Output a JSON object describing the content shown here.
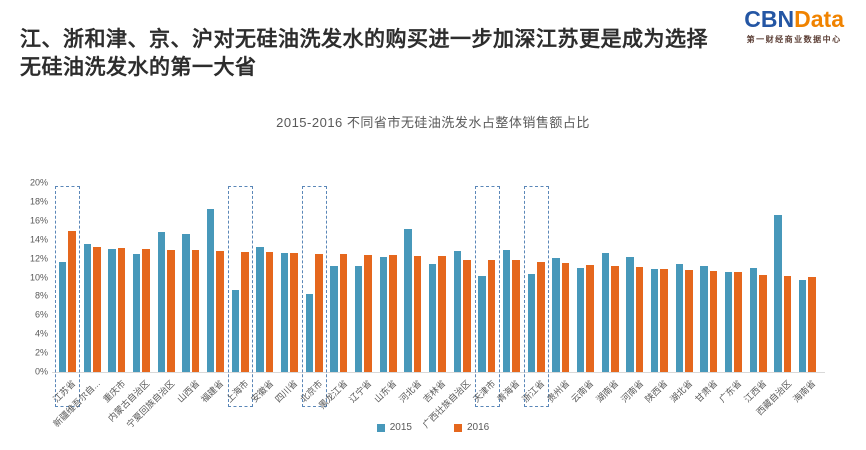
{
  "header": {
    "title_line1": "江、浙和津、京、沪对无硅油洗发水的购买进一步加深江苏更是成为选择",
    "title_line2": "无硅油洗发水的第一大省",
    "logo": {
      "part1": "CBN",
      "part2": "Data",
      "subtitle": "第一财经商业数据中心"
    }
  },
  "chart_data": {
    "type": "bar",
    "title": "2015-2016 不同省市无硅油洗发水占整体销售额占比",
    "categories": [
      "江苏省",
      "新疆维吾尔自...",
      "重庆市",
      "内蒙古自治区",
      "宁夏回族自治区",
      "山西省",
      "福建省",
      "上海市",
      "安徽省",
      "四川省",
      "北京市",
      "黑龙江省",
      "辽宁省",
      "山东省",
      "河北省",
      "吉林省",
      "广西壮族自治区",
      "天津市",
      "青海省",
      "浙江省",
      "贵州省",
      "云南省",
      "湖南省",
      "河南省",
      "陕西省",
      "湖北省",
      "甘肃省",
      "广东省",
      "江西省",
      "西藏自治区",
      "海南省"
    ],
    "series": [
      {
        "name": "2015",
        "color": "#4798ba",
        "values": [
          11.6,
          13.5,
          13.0,
          12.5,
          14.8,
          14.6,
          17.2,
          8.7,
          13.2,
          12.6,
          8.3,
          11.2,
          11.2,
          12.2,
          15.1,
          11.4,
          12.8,
          10.2,
          12.9,
          10.4,
          12.1,
          11.0,
          12.6,
          12.2,
          10.9,
          11.4,
          11.2,
          10.6,
          11.0,
          16.6,
          9.7
        ]
      },
      {
        "name": "2016",
        "color": "#e5671d",
        "values": [
          14.9,
          13.2,
          13.1,
          13.0,
          12.9,
          12.9,
          12.8,
          12.7,
          12.7,
          12.6,
          12.5,
          12.5,
          12.4,
          12.4,
          12.3,
          12.3,
          11.9,
          11.9,
          11.8,
          11.6,
          11.5,
          11.3,
          11.2,
          11.1,
          10.9,
          10.8,
          10.7,
          10.6,
          10.3,
          10.2,
          10.1
        ]
      }
    ],
    "highlighted_categories": [
      "江苏省",
      "上海市",
      "北京市",
      "天津市",
      "浙江省"
    ],
    "highlight_border_color": "#5b87b8",
    "ylim": [
      0,
      20
    ],
    "ytick_step": 2,
    "ytick_suffix": "%",
    "grid": false,
    "legend_position": "bottom"
  }
}
